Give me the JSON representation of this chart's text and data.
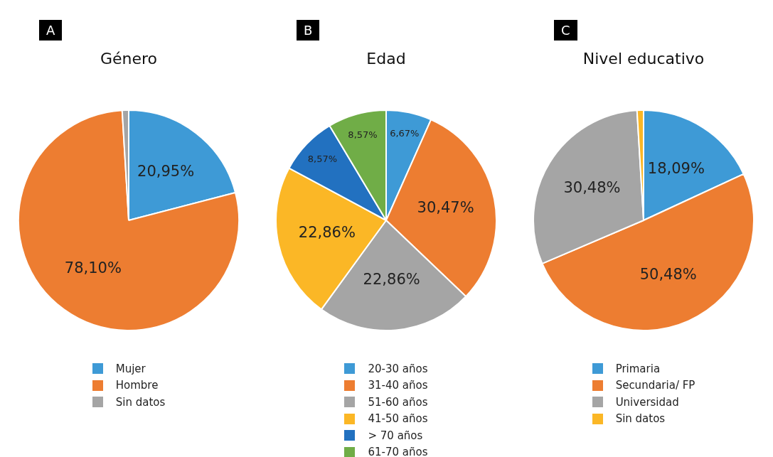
{
  "chart_data": [
    {
      "type": "pie",
      "title": "Género",
      "annotations": [
        "A"
      ],
      "legend": "bottom",
      "categories": [
        "Mujer",
        "Hombre",
        "Sin datos"
      ],
      "values": [
        20.95,
        78.1,
        0.95
      ],
      "colors": [
        "#3e9ad6",
        "#ed7d31",
        "#a5a5a5"
      ],
      "value_labels": [
        "20,95%",
        "78,10%",
        null
      ]
    },
    {
      "type": "pie",
      "title": "Edad",
      "annotations": [
        "B"
      ],
      "legend": "bottom",
      "categories": [
        "20-30 años",
        "31-40 años",
        "51-60 años",
        "41-50 años",
        "> 70 años",
        "61-70 años"
      ],
      "values": [
        6.67,
        30.47,
        22.86,
        22.86,
        8.57,
        8.57
      ],
      "colors": [
        "#3e9ad6",
        "#ed7d31",
        "#a5a5a5",
        "#fbb726",
        "#2271c0",
        "#70ad47"
      ],
      "value_labels": [
        "6,67%",
        "30,47%",
        "22,86%",
        "22,86%",
        "8,57%",
        "8,57%"
      ]
    },
    {
      "type": "pie",
      "title": "Nivel educativo",
      "annotations": [
        "C"
      ],
      "legend": "bottom",
      "categories": [
        "Primaria",
        "Secundaria/ FP",
        "Universidad",
        "Sin datos"
      ],
      "values": [
        18.09,
        50.48,
        30.48,
        0.95
      ],
      "colors": [
        "#3e9ad6",
        "#ed7d31",
        "#a5a5a5",
        "#fbb726"
      ],
      "value_labels": [
        "18,09%",
        "50,48%",
        "30,48%",
        null
      ]
    }
  ]
}
